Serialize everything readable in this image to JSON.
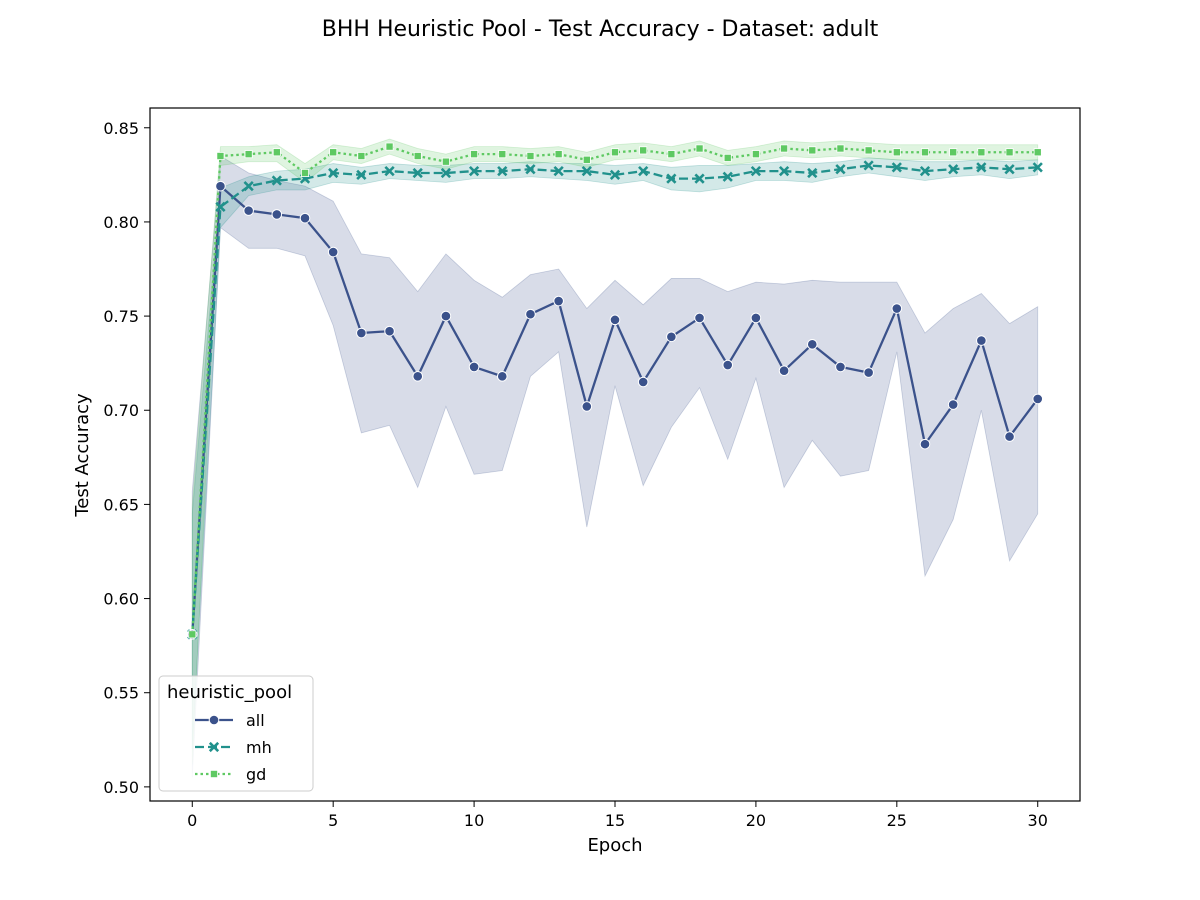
{
  "chart_data": {
    "type": "line",
    "title": "BHH Heuristic Pool - Test Accuracy - Dataset: adult",
    "xlabel": "Epoch",
    "ylabel": "Test Accuracy",
    "xlim": [
      -1.5,
      31.5
    ],
    "ylim": [
      0.4925,
      0.8605
    ],
    "xticks": [
      0,
      5,
      10,
      15,
      20,
      25,
      30
    ],
    "xtick_labels": [
      "0",
      "5",
      "10",
      "15",
      "20",
      "25",
      "30"
    ],
    "yticks": [
      0.5,
      0.55,
      0.6,
      0.65,
      0.7,
      0.75,
      0.8,
      0.85
    ],
    "ytick_labels": [
      "0.50",
      "0.55",
      "0.60",
      "0.65",
      "0.70",
      "0.75",
      "0.80",
      "0.85"
    ],
    "grid": false,
    "legend": {
      "title": "heuristic_pool",
      "placement": "lower-left"
    },
    "x": [
      0,
      1,
      2,
      3,
      4,
      5,
      6,
      7,
      8,
      9,
      10,
      11,
      12,
      13,
      14,
      15,
      16,
      17,
      18,
      19,
      20,
      21,
      22,
      23,
      24,
      25,
      26,
      27,
      28,
      29,
      30
    ],
    "series": [
      {
        "name": "all",
        "color": "#3b528b",
        "marker": "circle",
        "dash": "solid",
        "values": [
          0.581,
          0.819,
          0.806,
          0.804,
          0.802,
          0.784,
          0.741,
          0.742,
          0.718,
          0.75,
          0.723,
          0.718,
          0.751,
          0.758,
          0.702,
          0.748,
          0.715,
          0.739,
          0.749,
          0.724,
          0.749,
          0.721,
          0.735,
          0.723,
          0.72,
          0.754,
          0.682,
          0.703,
          0.737,
          0.686,
          0.706
        ],
        "lower": [
          0.505,
          0.797,
          0.786,
          0.786,
          0.782,
          0.745,
          0.688,
          0.692,
          0.659,
          0.702,
          0.666,
          0.668,
          0.718,
          0.731,
          0.638,
          0.713,
          0.66,
          0.691,
          0.712,
          0.674,
          0.717,
          0.659,
          0.684,
          0.665,
          0.668,
          0.731,
          0.612,
          0.642,
          0.7,
          0.62,
          0.645
        ],
        "upper": [
          0.657,
          0.835,
          0.826,
          0.822,
          0.819,
          0.811,
          0.783,
          0.781,
          0.763,
          0.783,
          0.769,
          0.76,
          0.772,
          0.775,
          0.754,
          0.769,
          0.756,
          0.77,
          0.77,
          0.763,
          0.768,
          0.767,
          0.769,
          0.768,
          0.768,
          0.768,
          0.741,
          0.754,
          0.762,
          0.746,
          0.755
        ]
      },
      {
        "name": "mh",
        "color": "#21918c",
        "marker": "x",
        "dash": "dashed",
        "values": [
          0.581,
          0.808,
          0.819,
          0.822,
          0.823,
          0.826,
          0.825,
          0.827,
          0.826,
          0.826,
          0.827,
          0.827,
          0.828,
          0.827,
          0.827,
          0.825,
          0.827,
          0.823,
          0.823,
          0.824,
          0.827,
          0.827,
          0.826,
          0.828,
          0.83,
          0.829,
          0.827,
          0.828,
          0.829,
          0.828,
          0.829
        ],
        "lower": [
          0.52,
          0.797,
          0.814,
          0.817,
          0.817,
          0.821,
          0.82,
          0.823,
          0.822,
          0.821,
          0.823,
          0.823,
          0.824,
          0.823,
          0.822,
          0.82,
          0.822,
          0.817,
          0.816,
          0.818,
          0.822,
          0.822,
          0.821,
          0.824,
          0.826,
          0.824,
          0.822,
          0.824,
          0.825,
          0.823,
          0.825
        ],
        "upper": [
          0.645,
          0.818,
          0.824,
          0.827,
          0.828,
          0.831,
          0.829,
          0.831,
          0.83,
          0.83,
          0.831,
          0.831,
          0.832,
          0.831,
          0.831,
          0.83,
          0.831,
          0.829,
          0.83,
          0.83,
          0.831,
          0.832,
          0.831,
          0.832,
          0.834,
          0.833,
          0.832,
          0.832,
          0.833,
          0.832,
          0.833
        ],
        "legend_marker": "x"
      },
      {
        "name": "gd",
        "color": "#5ec962",
        "marker": "square",
        "dash": "dotted",
        "values": [
          0.581,
          0.835,
          0.836,
          0.837,
          0.826,
          0.837,
          0.835,
          0.84,
          0.835,
          0.832,
          0.836,
          0.836,
          0.835,
          0.836,
          0.833,
          0.837,
          0.838,
          0.836,
          0.839,
          0.834,
          0.836,
          0.839,
          0.838,
          0.839,
          0.838,
          0.837,
          0.837,
          0.837,
          0.837,
          0.837,
          0.837
        ],
        "lower": [
          0.512,
          0.83,
          0.832,
          0.832,
          0.821,
          0.833,
          0.831,
          0.836,
          0.831,
          0.828,
          0.832,
          0.832,
          0.831,
          0.832,
          0.829,
          0.833,
          0.834,
          0.832,
          0.835,
          0.83,
          0.832,
          0.835,
          0.834,
          0.835,
          0.834,
          0.833,
          0.833,
          0.833,
          0.833,
          0.833,
          0.833
        ],
        "upper": [
          0.65,
          0.84,
          0.84,
          0.841,
          0.831,
          0.841,
          0.839,
          0.844,
          0.839,
          0.836,
          0.84,
          0.84,
          0.839,
          0.84,
          0.837,
          0.841,
          0.842,
          0.84,
          0.843,
          0.838,
          0.84,
          0.843,
          0.842,
          0.843,
          0.842,
          0.841,
          0.841,
          0.841,
          0.841,
          0.841,
          0.841
        ]
      }
    ]
  }
}
